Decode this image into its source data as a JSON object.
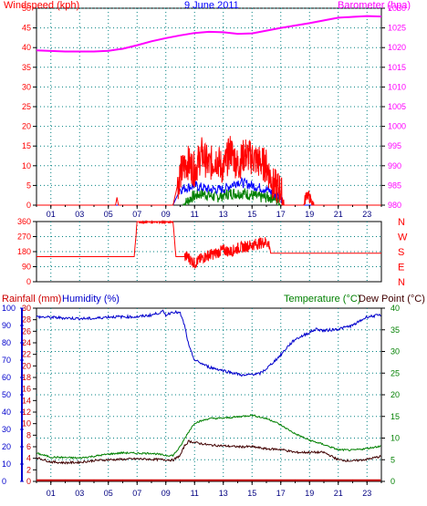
{
  "colors": {
    "wind": "#ff0000",
    "baro": "#ff00ff",
    "humidity": "#0000cc",
    "temperature": "#008000",
    "dewpoint": "#400000",
    "rain": "#cc0000",
    "grid": "#008080",
    "left_axis": "#ff0000",
    "rain_axis": "#cc0000",
    "hum_axis": "#0000cc",
    "right_axis_temp": "#008000",
    "winddir": "#ff0000",
    "gust": "#ff0000",
    "avg": "#0000ff",
    "speed": "#008000",
    "title": "#0000ff"
  },
  "chart_data": [
    {
      "type": "line",
      "title": "9 June 2011",
      "ylabel_left": "Windspeed (kph)",
      "ylabel_right": "Barometer (hpa)",
      "xlim": [
        0,
        24
      ],
      "x_ticks": [
        "01",
        "03",
        "05",
        "07",
        "09",
        "11",
        "13",
        "15",
        "17",
        "19",
        "21",
        "23"
      ],
      "ylim_left": [
        0,
        50
      ],
      "y_ticks_left": [
        "0",
        "5",
        "10",
        "15",
        "20",
        "25",
        "30",
        "35",
        "40",
        "45",
        "50"
      ],
      "ylim_right": [
        980,
        1030
      ],
      "y_ticks_right": [
        "980",
        "985",
        "990",
        "995",
        "1000",
        "1005",
        "1010",
        "1015",
        "1020",
        "1025",
        "1030"
      ],
      "grid": true,
      "series": [
        {
          "key": "barometer",
          "axis": "right",
          "x": [
            0,
            2,
            4,
            5,
            6,
            7,
            8,
            9,
            10,
            11,
            12,
            13,
            14,
            15,
            16,
            17,
            18,
            19,
            20,
            21,
            22,
            23,
            24
          ],
          "y": [
            1019.3,
            1019,
            1019,
            1019.2,
            1019.7,
            1020.6,
            1021.6,
            1022.4,
            1023.1,
            1023.7,
            1024,
            1023.9,
            1023.5,
            1023.6,
            1024.3,
            1025,
            1025.6,
            1026.2,
            1026.9,
            1027.6,
            1027.8,
            1028,
            1027.9
          ]
        },
        {
          "key": "gust",
          "axis": "left",
          "x": [
            0,
            5.5,
            5.6,
            5.7,
            9.5,
            10,
            10.5,
            11,
            11.5,
            12,
            12.5,
            13,
            13.5,
            14,
            14.5,
            15,
            15.5,
            16,
            16.5,
            17,
            17.2,
            18.6,
            18.8,
            19,
            19.2,
            24
          ],
          "y": [
            0,
            0,
            2,
            0,
            0,
            8,
            11,
            9,
            13,
            10,
            12,
            9,
            14,
            10,
            13,
            12,
            11,
            10,
            5,
            4,
            0,
            0,
            3,
            2,
            0,
            0
          ]
        },
        {
          "key": "average",
          "axis": "left",
          "x": [
            0,
            9.6,
            10,
            11,
            12,
            13,
            14,
            15,
            16,
            16.5,
            17,
            17.2,
            24
          ],
          "y": [
            0,
            0,
            4,
            5,
            4,
            4,
            6,
            5,
            4,
            3,
            2,
            0,
            0
          ]
        },
        {
          "key": "speed",
          "axis": "left",
          "x": [
            0,
            10.2,
            10.8,
            11.5,
            12.5,
            13.5,
            14.5,
            15.5,
            16.5,
            17,
            24
          ],
          "y": [
            0,
            0,
            2,
            3,
            2,
            3,
            3,
            2,
            2,
            0,
            0
          ]
        }
      ]
    },
    {
      "type": "line",
      "title": "",
      "ylabel_right_labels": [
        "N",
        "W",
        "S",
        "E",
        "N"
      ],
      "xlim": [
        0,
        24
      ],
      "ylim": [
        0,
        360
      ],
      "y_ticks": [
        "0",
        "90",
        "180",
        "270",
        "360"
      ],
      "series": [
        {
          "key": "wind_direction",
          "x": [
            0,
            6.8,
            7,
            9.5,
            9.7,
            10.5,
            11,
            11.5,
            12,
            12.5,
            13,
            13.5,
            14,
            14.5,
            15,
            15.5,
            16,
            16.2,
            16.3,
            24
          ],
          "y": [
            150,
            150,
            360,
            360,
            150,
            150,
            110,
            140,
            160,
            170,
            190,
            180,
            200,
            210,
            220,
            230,
            240,
            220,
            170,
            170
          ]
        }
      ]
    },
    {
      "type": "line",
      "title": "",
      "ylabel_left_rain": "Rainfall (mm)",
      "ylabel_left_hum": "Humidity (%)",
      "ylabel_right_temp": "Temperature (°C)",
      "ylabel_right_dew": "Dew Point (°C)",
      "xlim": [
        0,
        24
      ],
      "x_ticks": [
        "01",
        "03",
        "05",
        "07",
        "09",
        "11",
        "13",
        "15",
        "17",
        "19",
        "21",
        "23"
      ],
      "ylim_rain": [
        0,
        30
      ],
      "y_ticks_rain": [
        "0",
        "2",
        "4",
        "6",
        "8",
        "10",
        "12",
        "14",
        "16",
        "18",
        "20",
        "22",
        "24",
        "26",
        "28",
        "30"
      ],
      "ylim_hum": [
        0,
        100
      ],
      "y_ticks_hum": [
        "0",
        "10",
        "20",
        "30",
        "40",
        "50",
        "60",
        "70",
        "80",
        "90",
        "100"
      ],
      "ylim_temp": [
        0,
        40
      ],
      "y_ticks_temp": [
        "0",
        "5",
        "10",
        "15",
        "20",
        "25",
        "30",
        "35",
        "40"
      ],
      "grid": true,
      "series": [
        {
          "key": "humidity",
          "axis": "hum",
          "x": [
            0,
            3,
            4,
            5,
            6,
            7,
            8,
            8.8,
            9,
            9.5,
            10,
            10.3,
            10.6,
            11,
            11.5,
            12,
            13,
            14,
            14.5,
            15,
            15.5,
            16,
            16.5,
            17,
            17.5,
            18,
            19,
            19.5,
            20,
            21,
            22,
            23,
            24
          ],
          "y": [
            95,
            94,
            94,
            95,
            95,
            95,
            96,
            98,
            96,
            98,
            97,
            90,
            78,
            70,
            68,
            66,
            64,
            62,
            61,
            62,
            62,
            65,
            69,
            73,
            78,
            82,
            86,
            88,
            87,
            88,
            90,
            95,
            96
          ]
        },
        {
          "key": "temperature",
          "axis": "temp",
          "x": [
            0,
            1,
            2,
            3,
            4,
            5,
            6,
            7,
            8,
            9,
            9.5,
            10,
            10.5,
            11,
            12,
            13,
            14,
            15,
            16,
            16.5,
            17,
            18,
            19,
            20,
            21,
            22,
            23,
            24
          ],
          "y": [
            6.5,
            5.6,
            5.5,
            5.4,
            5.8,
            6.3,
            6.6,
            6.5,
            6.5,
            6,
            6,
            8,
            11,
            13.5,
            14.5,
            14.6,
            14.9,
            15.3,
            14.5,
            13.9,
            13,
            11,
            9.5,
            8.5,
            7.3,
            7.2,
            7.6,
            8.2
          ]
        },
        {
          "key": "dewpoint",
          "axis": "temp",
          "x": [
            0,
            1,
            2,
            3,
            4,
            5,
            6,
            7,
            8,
            9,
            9.5,
            10,
            10.3,
            10.6,
            11,
            12,
            13,
            14,
            15,
            16,
            17,
            18,
            19,
            20,
            21,
            22,
            23,
            24
          ],
          "y": [
            5.5,
            4.5,
            4.3,
            4.4,
            4.8,
            5,
            5.1,
            5.2,
            5.1,
            5,
            4.9,
            6,
            8.2,
            9.3,
            9,
            8.4,
            8.2,
            8,
            8,
            7.5,
            7.4,
            6.7,
            6.7,
            6.7,
            5,
            4.7,
            5.1,
            5.8
          ]
        },
        {
          "key": "rain",
          "axis": "rain",
          "x": [
            0,
            24
          ],
          "y": [
            0.2,
            0.2
          ]
        }
      ]
    }
  ]
}
